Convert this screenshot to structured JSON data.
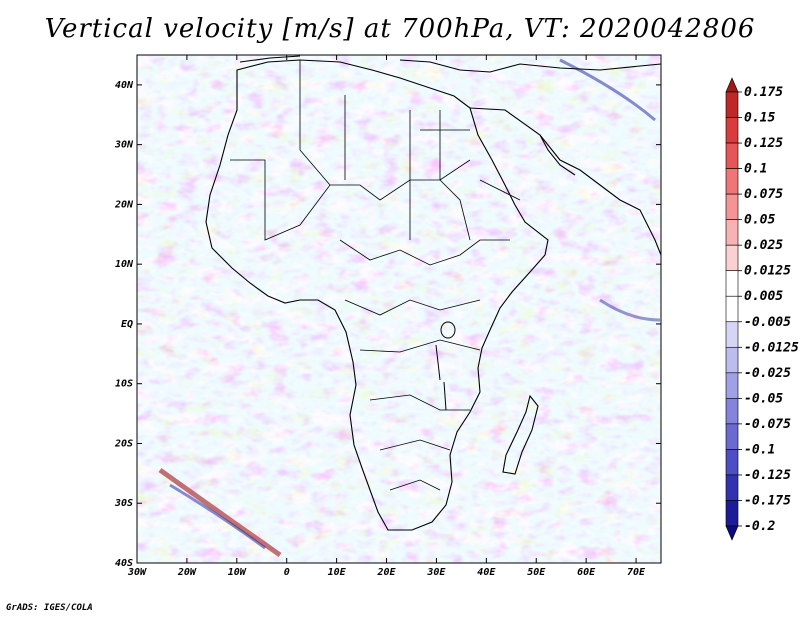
{
  "title": "Vertical velocity [m/s] at 700hPa, VT: 2020042806",
  "credit": "GrADS: IGES/COLA",
  "map": {
    "lon_range": [
      -30,
      75
    ],
    "lat_range": [
      -40,
      45
    ],
    "lat_ticks": [
      {
        "value": 40,
        "label": "40N"
      },
      {
        "value": 30,
        "label": "30N"
      },
      {
        "value": 20,
        "label": "20N"
      },
      {
        "value": 10,
        "label": "10N"
      },
      {
        "value": 0,
        "label": "EQ"
      },
      {
        "value": -10,
        "label": "10S"
      },
      {
        "value": -20,
        "label": "20S"
      },
      {
        "value": -30,
        "label": "30S"
      },
      {
        "value": -40,
        "label": "40S"
      }
    ],
    "lon_ticks": [
      {
        "value": -30,
        "label": "30W"
      },
      {
        "value": -20,
        "label": "20W"
      },
      {
        "value": -10,
        "label": "10W"
      },
      {
        "value": 0,
        "label": "0"
      },
      {
        "value": 10,
        "label": "10E"
      },
      {
        "value": 20,
        "label": "20E"
      },
      {
        "value": 30,
        "label": "30E"
      },
      {
        "value": 40,
        "label": "40E"
      },
      {
        "value": 50,
        "label": "50E"
      },
      {
        "value": 60,
        "label": "60E"
      },
      {
        "value": 70,
        "label": "70E"
      }
    ]
  },
  "colorbar": {
    "levels": [
      "0.175",
      "0.15",
      "0.125",
      "0.1",
      "0.075",
      "0.05",
      "0.025",
      "0.0125",
      "0.005",
      "-0.005",
      "-0.0125",
      "-0.025",
      "-0.05",
      "-0.075",
      "-0.1",
      "-0.125",
      "-0.175",
      "-0.2"
    ],
    "colors": [
      "#a01818",
      "#c02828",
      "#d83c3c",
      "#e65656",
      "#ef7676",
      "#f49494",
      "#f8b2b2",
      "#fbd0d0",
      "#ffffff",
      "#ffffff",
      "#d6d6f4",
      "#bcbcee",
      "#a0a0e6",
      "#8484dc",
      "#6a6ad0",
      "#4e4ec4",
      "#3232b0",
      "#1c1c98",
      "#0c0c80"
    ]
  }
}
